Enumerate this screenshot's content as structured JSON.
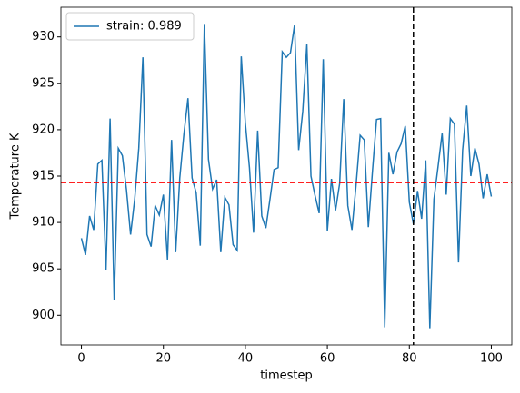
{
  "chart_data": {
    "type": "line",
    "xlabel": "timestep",
    "ylabel": "Temperature K",
    "x": [
      0,
      1,
      2,
      3,
      4,
      5,
      6,
      7,
      8,
      9,
      10,
      11,
      12,
      13,
      14,
      15,
      16,
      17,
      18,
      19,
      20,
      21,
      22,
      23,
      24,
      25,
      26,
      27,
      28,
      29,
      30,
      31,
      32,
      33,
      34,
      35,
      36,
      37,
      38,
      39,
      40,
      41,
      42,
      43,
      44,
      45,
      46,
      47,
      48,
      49,
      50,
      51,
      52,
      53,
      54,
      55,
      56,
      57,
      58,
      59,
      60,
      61,
      62,
      63,
      64,
      65,
      66,
      67,
      68,
      69,
      70,
      71,
      72,
      73,
      74,
      75,
      76,
      77,
      78,
      79,
      80,
      81,
      82,
      83,
      84,
      85,
      86,
      87,
      88,
      89,
      90,
      91,
      92,
      93,
      94,
      95,
      96,
      97,
      98,
      99,
      100
    ],
    "series": [
      {
        "name": "strain: 0.989",
        "color": "#1f77b4",
        "values": [
          908.3,
          906.5,
          910.7,
          909.2,
          916.3,
          916.7,
          904.9,
          921.2,
          901.6,
          918.0,
          917.2,
          913.5,
          908.7,
          912.5,
          918.0,
          927.8,
          908.7,
          907.4,
          911.8,
          910.8,
          913.0,
          906.0,
          918.9,
          906.8,
          914.8,
          919.5,
          923.4,
          914.8,
          913.2,
          907.5,
          931.4,
          916.8,
          913.6,
          914.6,
          906.8,
          912.7,
          911.9,
          907.6,
          907.0,
          927.9,
          920.7,
          915.9,
          908.9,
          919.9,
          910.7,
          909.4,
          912.5,
          915.7,
          915.9,
          928.4,
          927.8,
          928.3,
          931.3,
          917.8,
          922.0,
          929.2,
          915.0,
          912.9,
          911.0,
          927.6,
          909.1,
          914.7,
          911.3,
          914.2,
          923.3,
          911.8,
          909.2,
          914.0,
          919.4,
          918.9,
          909.5,
          915.5,
          921.1,
          921.2,
          898.7,
          917.5,
          915.2,
          917.6,
          918.5,
          920.4,
          912.2,
          909.8,
          913.4,
          910.4,
          916.7,
          898.6,
          912.5,
          916.0,
          919.6,
          913.0,
          921.2,
          920.6,
          905.7,
          917.8,
          922.6,
          915.0,
          918.0,
          916.3,
          912.6,
          915.2,
          912.8
        ]
      }
    ],
    "hlines": [
      {
        "y": 914.3,
        "color": "#ff0000"
      }
    ],
    "vlines": [
      {
        "x": 81,
        "color": "#000000"
      }
    ],
    "xlim": [
      -5,
      105
    ],
    "xticks": [
      0,
      20,
      40,
      60,
      80,
      100
    ],
    "ylim": [
      896.8,
      933.2
    ],
    "yticks": [
      900,
      905,
      910,
      915,
      920,
      925,
      930
    ],
    "legend": "upper left",
    "grid": false
  }
}
